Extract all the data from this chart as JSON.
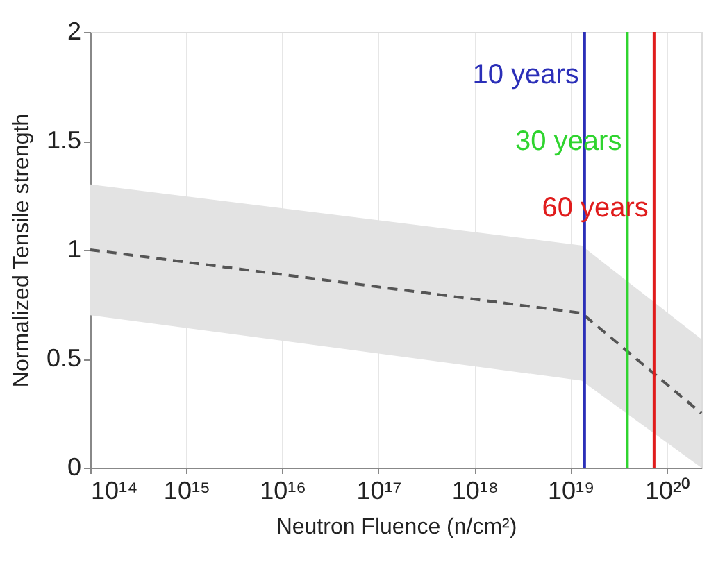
{
  "chart_data": {
    "type": "line",
    "xlabel": "Neutron Fluence (n/cm²)",
    "ylabel": "Normalized Tensile strength",
    "log": "x",
    "xlim": [
      100000000000000.0,
      2.3e+20
    ],
    "ylim": [
      0,
      2
    ],
    "xticks": [
      {
        "value": 100000000000000.0,
        "label": "10¹⁴"
      },
      {
        "value": 1000000000000000.0,
        "label": "10¹⁵"
      },
      {
        "value": 1e+16,
        "label": "10¹⁶"
      },
      {
        "value": 1e+17,
        "label": "10¹⁷"
      },
      {
        "value": 1e+18,
        "label": "10¹⁸"
      },
      {
        "value": 1e+19,
        "label": "10¹⁹"
      },
      {
        "value": 1e+20,
        "label": "10²⁰"
      }
    ],
    "yticks": [
      0,
      0.5,
      1,
      1.5,
      2
    ],
    "grid": "x",
    "line_style": "dashed",
    "marker": "none",
    "series": [
      {
        "color": "#555555",
        "x": [
          100000000000000.0,
          1.3e+19,
          2.3e+20
        ],
        "values": [
          1.0,
          0.71,
          0.25
        ],
        "lower": [
          0.7,
          0.4,
          0.0
        ],
        "upper": [
          1.3,
          1.02,
          0.59
        ]
      }
    ],
    "ref_lines": [
      {
        "axis": "x",
        "value": 1.4e+19,
        "label": "10 years",
        "color": "#2b2fb8"
      },
      {
        "axis": "x",
        "value": 3.9e+19,
        "label": "30 years",
        "color": "#2fd42f"
      },
      {
        "axis": "x",
        "value": 7.4e+19,
        "label": "60 years",
        "color": "#e01c1c"
      }
    ]
  }
}
